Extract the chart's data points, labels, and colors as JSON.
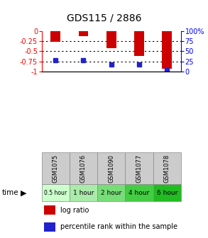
{
  "title": "GDS115 / 2886",
  "samples": [
    "GSM1075",
    "GSM1076",
    "GSM1090",
    "GSM1077",
    "GSM1078"
  ],
  "time_labels": [
    "0.5 hour",
    "1 hour",
    "2 hour",
    "4 hour",
    "6 hour"
  ],
  "time_colors": [
    "#ccffcc",
    "#aaeaaa",
    "#77dd77",
    "#44cc44",
    "#22bb22"
  ],
  "log_ratios": [
    -0.27,
    -0.13,
    -0.43,
    -0.62,
    -0.93
  ],
  "percentile_ranks_pct": [
    27,
    27,
    18,
    18,
    4
  ],
  "bar_color": "#cc0000",
  "percentile_color": "#2222cc",
  "ylim_left": [
    -1,
    0
  ],
  "ylim_right": [
    0,
    100
  ],
  "yticks_left": [
    0,
    -0.25,
    -0.5,
    -0.75,
    -1
  ],
  "yticks_right": [
    0,
    25,
    50,
    75,
    100
  ],
  "background_color": "#ffffff",
  "bar_width": 0.35,
  "title_fontsize": 10
}
